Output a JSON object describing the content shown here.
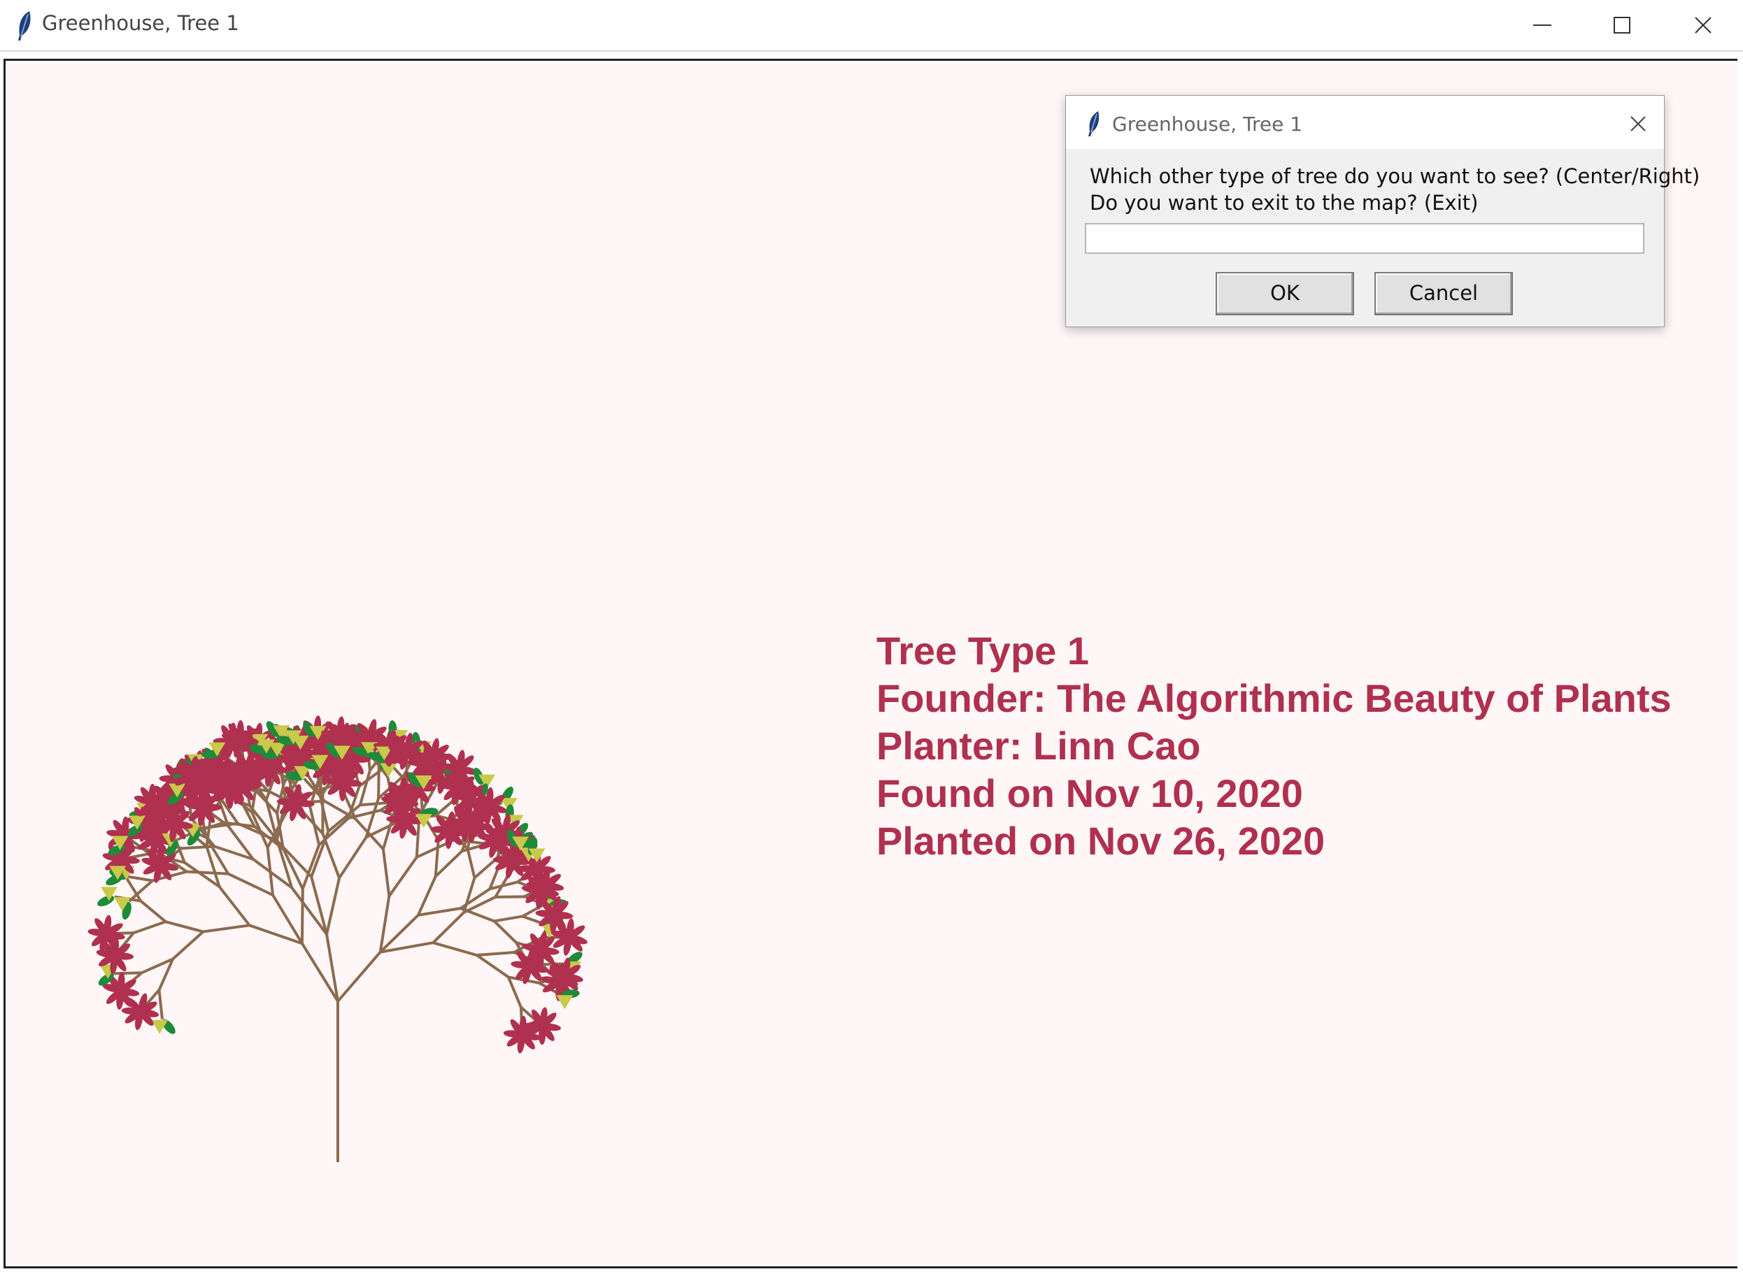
{
  "window": {
    "title": "Greenhouse, Tree 1",
    "icon": "feather-icon"
  },
  "controls": {
    "minimize_icon": "minimize-icon",
    "maximize_icon": "maximize-icon",
    "close_icon": "close-icon"
  },
  "colors": {
    "canvas_bg": "#fff7f7",
    "branch": "#8b6a4f",
    "flower": "#b0304f",
    "leaf_dark": "#1f8a3a",
    "leaf_light": "#c9c94a",
    "info_text": "#b0304f"
  },
  "info": {
    "line1": "Tree Type 1",
    "line2": "Founder: The Algorithmic Beauty of Plants",
    "line3": "Planter: Linn Cao",
    "line4": "Found on Nov 10, 2020",
    "line5": "Planted on Nov 26, 2020"
  },
  "dialog": {
    "title": "Greenhouse, Tree 1",
    "prompt_line1": "Which other type of tree do you want to see? (Center/Right)",
    "prompt_line2": "Do you want to exit to the map? (Exit)",
    "input_value": "",
    "ok_label": "OK",
    "cancel_label": "Cancel"
  }
}
